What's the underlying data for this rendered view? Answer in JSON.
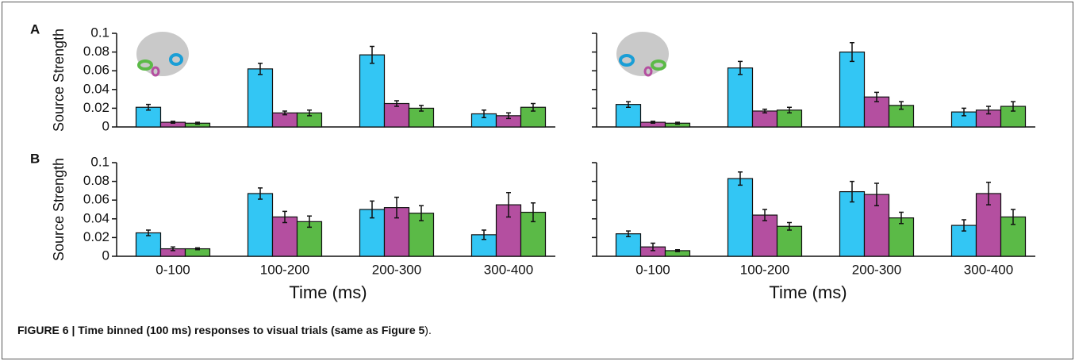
{
  "chart_data": [
    {
      "type": "bar",
      "panel": "A",
      "ylabel": "Source Strength",
      "categories": [
        null,
        null,
        null,
        null
      ],
      "series": [
        {
          "color": "#33c6f4",
          "values": [
            0.021,
            0.062,
            0.077,
            0.014
          ],
          "errors": [
            0.003,
            0.006,
            0.009,
            0.004
          ]
        },
        {
          "color": "#b44fa0",
          "values": [
            0.005,
            0.015,
            0.025,
            0.012
          ],
          "errors": [
            0.001,
            0.002,
            0.003,
            0.003
          ]
        },
        {
          "color": "#5bba47",
          "values": [
            0.004,
            0.015,
            0.02,
            0.021
          ],
          "errors": [
            0.001,
            0.003,
            0.003,
            0.004
          ]
        }
      ],
      "ylim": [
        0,
        0.1
      ],
      "yticks": [
        0,
        0.02,
        0.04,
        0.06,
        0.08,
        0.1
      ],
      "ytick_labels": true
    },
    {
      "type": "bar",
      "categories": [
        null,
        null,
        null,
        null
      ],
      "series": [
        {
          "color": "#33c6f4",
          "values": [
            0.024,
            0.063,
            0.08,
            0.016
          ],
          "errors": [
            0.003,
            0.007,
            0.01,
            0.004
          ]
        },
        {
          "color": "#b44fa0",
          "values": [
            0.005,
            0.017,
            0.032,
            0.018
          ],
          "errors": [
            0.001,
            0.002,
            0.005,
            0.004
          ]
        },
        {
          "color": "#5bba47",
          "values": [
            0.004,
            0.018,
            0.023,
            0.022
          ],
          "errors": [
            0.001,
            0.003,
            0.004,
            0.005
          ]
        }
      ],
      "ylim": [
        0,
        0.1
      ],
      "yticks": [
        0,
        0.02,
        0.04,
        0.06,
        0.08,
        0.1
      ],
      "ytick_labels": false
    },
    {
      "type": "bar",
      "panel": "B",
      "ylabel": "Source Strength",
      "xlabel": "Time (ms)",
      "categories": [
        "0-100",
        "100-200",
        "200-300",
        "300-400"
      ],
      "series": [
        {
          "color": "#33c6f4",
          "values": [
            0.025,
            0.067,
            0.05,
            0.023
          ],
          "errors": [
            0.003,
            0.006,
            0.009,
            0.005
          ]
        },
        {
          "color": "#b44fa0",
          "values": [
            0.008,
            0.042,
            0.052,
            0.055
          ],
          "errors": [
            0.002,
            0.006,
            0.011,
            0.013
          ]
        },
        {
          "color": "#5bba47",
          "values": [
            0.008,
            0.037,
            0.046,
            0.047
          ],
          "errors": [
            0.001,
            0.006,
            0.008,
            0.01
          ]
        }
      ],
      "ylim": [
        0,
        0.1
      ],
      "yticks": [
        0,
        0.02,
        0.04,
        0.06,
        0.08,
        0.1
      ],
      "ytick_labels": true
    },
    {
      "type": "bar",
      "xlabel": "Time (ms)",
      "categories": [
        "0-100",
        "100-200",
        "200-300",
        "300-400"
      ],
      "series": [
        {
          "color": "#33c6f4",
          "values": [
            0.024,
            0.083,
            0.069,
            0.033
          ],
          "errors": [
            0.003,
            0.007,
            0.011,
            0.006
          ]
        },
        {
          "color": "#b44fa0",
          "values": [
            0.01,
            0.044,
            0.066,
            0.067
          ],
          "errors": [
            0.004,
            0.006,
            0.012,
            0.012
          ]
        },
        {
          "color": "#5bba47",
          "values": [
            0.006,
            0.032,
            0.041,
            0.042
          ],
          "errors": [
            0.001,
            0.004,
            0.006,
            0.008
          ]
        }
      ],
      "ylim": [
        0,
        0.1
      ],
      "yticks": [
        0,
        0.02,
        0.04,
        0.06,
        0.08,
        0.1
      ],
      "ytick_labels": false
    }
  ],
  "caption": {
    "parts": [
      "FIGURE 6 | Time binned (100 ms) responses to visual trials (same as ",
      "Figure 5",
      ")."
    ]
  }
}
